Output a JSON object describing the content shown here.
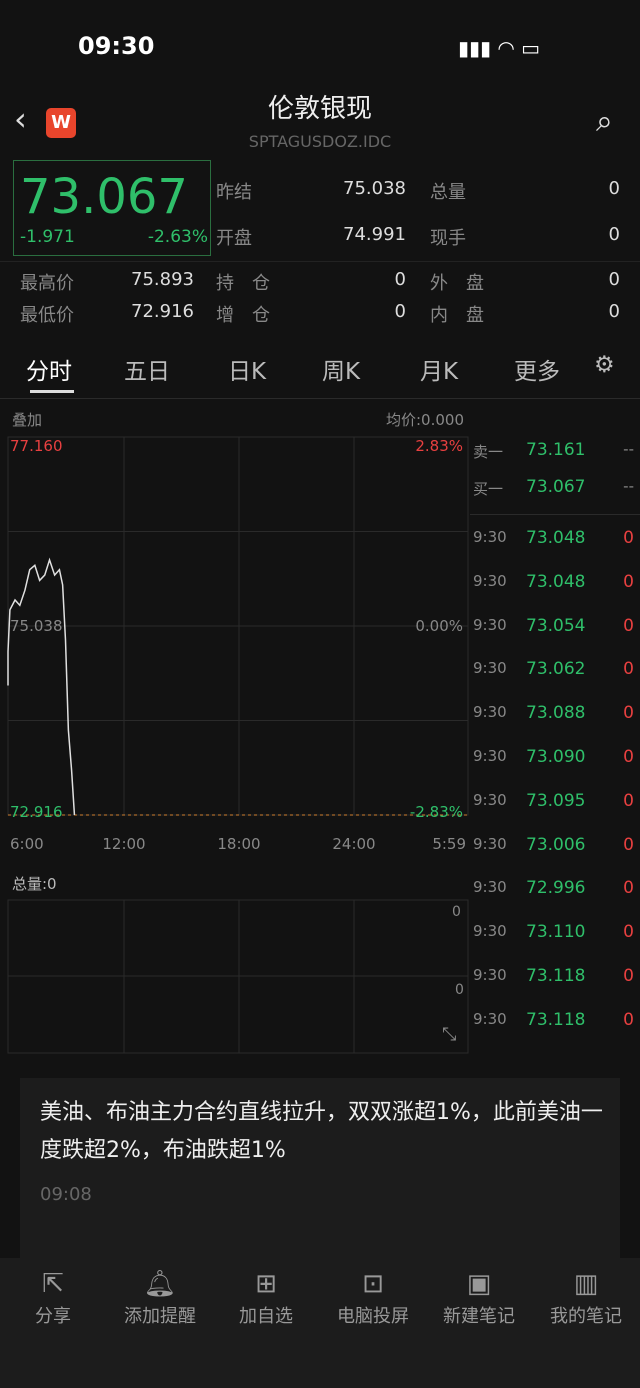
{
  "status": {
    "time": "09:30"
  },
  "header": {
    "title": "伦敦银现",
    "code": "SPTAGUSDOZ.IDC",
    "logo": "W"
  },
  "quote": {
    "price": "73.067",
    "change": "-1.971",
    "change_pct": "-2.63%",
    "fields": [
      {
        "label": "昨结",
        "value": "75.038"
      },
      {
        "label": "总量",
        "value": "0"
      },
      {
        "label": "开盘",
        "value": "74.991"
      },
      {
        "label": "现手",
        "value": "0"
      },
      {
        "label": "最高价",
        "value": "75.893"
      },
      {
        "label": "持　仓",
        "value": "0"
      },
      {
        "label": "外　盘",
        "value": "0"
      },
      {
        "label": "最低价",
        "value": "72.916"
      },
      {
        "label": "增　仓",
        "value": "0"
      },
      {
        "label": "内　盘",
        "value": "0"
      }
    ]
  },
  "tabs": [
    "分时",
    "五日",
    "日K",
    "周K",
    "月K",
    "更多"
  ],
  "chart_labels": {
    "overlay": "叠加",
    "avg": "均价:0.000",
    "volume": "总量:0",
    "vol_ticks": [
      "0",
      "0"
    ]
  },
  "chart_data": {
    "type": "line",
    "ylim": [
      72.916,
      77.16
    ],
    "y_ticks_left": [
      "77.160",
      "75.038",
      "72.916"
    ],
    "y_ticks_right": [
      "2.83%",
      "0.00%",
      "-2.83%"
    ],
    "x_ticks": [
      "6:00",
      "12:00",
      "18:00",
      "24:00",
      "5:59"
    ],
    "series": [
      {
        "x": [
          "6:00",
          "6:00",
          "6:06",
          "6:22",
          "6:37",
          "6:53",
          "7:08",
          "7:24",
          "7:39",
          "7:55",
          "8:10",
          "8:26",
          "8:41",
          "8:51",
          "9:00",
          "9:09",
          "9:19",
          "9:28"
        ],
        "y": [
          74.37,
          74.75,
          75.22,
          75.33,
          75.27,
          75.44,
          75.67,
          75.72,
          75.55,
          75.61,
          75.78,
          75.61,
          75.67,
          75.5,
          74.88,
          73.87,
          73.42,
          72.916
        ]
      }
    ],
    "reference_line": 72.916,
    "line_color": "#e0e0e0"
  },
  "orderbook": [
    {
      "label": "卖一",
      "price": "73.161",
      "vol": "--"
    },
    {
      "label": "买一",
      "price": "73.067",
      "vol": "--"
    }
  ],
  "ticks": [
    [
      "9:30",
      "73.048",
      "0"
    ],
    [
      "9:30",
      "73.048",
      "0"
    ],
    [
      "9:30",
      "73.054",
      "0"
    ],
    [
      "9:30",
      "73.062",
      "0"
    ],
    [
      "9:30",
      "73.088",
      "0"
    ],
    [
      "9:30",
      "73.090",
      "0"
    ],
    [
      "9:30",
      "73.095",
      "0"
    ],
    [
      "9:30",
      "73.006",
      "0"
    ],
    [
      "9:30",
      "72.996",
      "0"
    ],
    [
      "9:30",
      "73.110",
      "0"
    ],
    [
      "9:30",
      "73.118",
      "0"
    ],
    [
      "9:30",
      "73.118",
      "0"
    ]
  ],
  "news": {
    "headline": "美油、布油主力合约直线拉升，双双涨超1%，此前美油一度跌超2%，布油跌超1%",
    "time": "09:08"
  },
  "bottom": [
    {
      "label": "分享",
      "icon": "share-icon"
    },
    {
      "label": "添加提醒",
      "icon": "bell-icon"
    },
    {
      "label": "加自选",
      "icon": "add-watchlist-icon"
    },
    {
      "label": "电脑投屏",
      "icon": "cast-icon"
    },
    {
      "label": "新建笔记",
      "icon": "new-note-icon"
    },
    {
      "label": "我的笔记",
      "icon": "notebook-icon"
    }
  ]
}
